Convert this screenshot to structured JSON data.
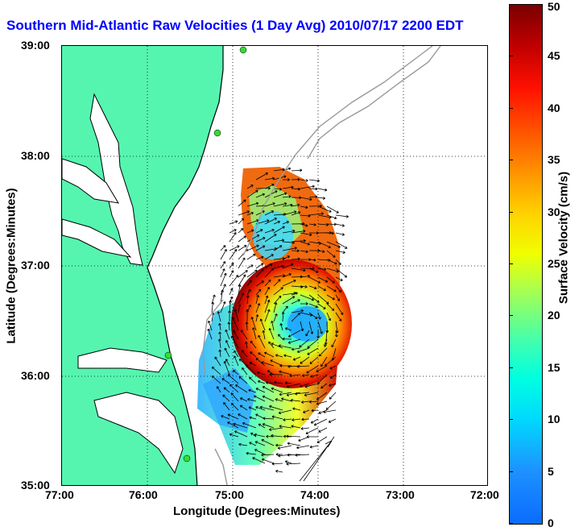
{
  "title": "Southern Mid-Atlantic Raw Velocities (1 Day Avg) 2010/07/17 2200 EDT",
  "axes": {
    "x_label": "Longitude (Degrees:Minutes)",
    "y_label": "Latitude (Degrees:Minutes)",
    "x_ticks": [
      "77:00",
      "76:00",
      "75:00",
      "74:00",
      "73:00",
      "72:00"
    ],
    "y_ticks": [
      "39:00",
      "38:00",
      "37:00",
      "36:00",
      "35:00"
    ]
  },
  "colorbar": {
    "label": "Surface Velocity (cm/s)",
    "ticks": [
      "50",
      "45",
      "40",
      "35",
      "30",
      "25",
      "20",
      "15",
      "10",
      "5",
      "0"
    ]
  },
  "colors": {
    "land": "#55f5b0",
    "coastline": "#000000",
    "bathymetry": "#9a9a9a",
    "title": "#0000ff",
    "station": "#33dd33"
  }
}
